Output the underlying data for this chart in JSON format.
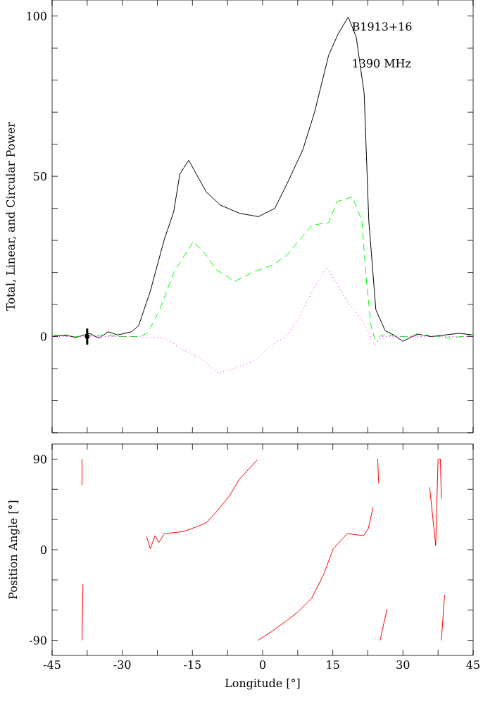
{
  "chart_data": [
    {
      "type": "line",
      "ylabel": "Total, Linear, and Circular Power",
      "annotations": [
        "B1913+16",
        "1390 MHz"
      ],
      "xlim": [
        -45,
        45
      ],
      "ylim": [
        -30,
        105
      ],
      "tick_labels": "y",
      "xticks": [
        {
          "value": -45,
          "label": null
        },
        {
          "value": -37.5,
          "label": null
        },
        {
          "value": -30,
          "label": null
        },
        {
          "value": -22.5,
          "label": null
        },
        {
          "value": -15,
          "label": null
        },
        {
          "value": -7.5,
          "label": null
        },
        {
          "value": 0,
          "label": null
        },
        {
          "value": 7.5,
          "label": null
        },
        {
          "value": 15,
          "label": null
        },
        {
          "value": 22.5,
          "label": null
        },
        {
          "value": 30,
          "label": null
        },
        {
          "value": 37.5,
          "label": null
        },
        {
          "value": 45,
          "label": null
        }
      ],
      "yticks": [
        {
          "value": -30,
          "label": null
        },
        {
          "value": -20,
          "label": null
        },
        {
          "value": -10,
          "label": null
        },
        0,
        {
          "value": 10,
          "label": null
        },
        {
          "value": 20,
          "label": null
        },
        {
          "value": 30,
          "label": null
        },
        {
          "value": 40,
          "label": null
        },
        50,
        {
          "value": 60,
          "label": null
        },
        {
          "value": 70,
          "label": null
        },
        {
          "value": 80,
          "label": null
        },
        {
          "value": 90,
          "label": null
        },
        100
      ],
      "series": [
        {
          "color": "#000000",
          "line_style": "solid",
          "x": [
            -45,
            -42,
            -40,
            -37,
            -35,
            -33,
            -31,
            -28,
            -26.5,
            -24,
            -21,
            -19,
            -17.7,
            -15.8,
            -12,
            -9,
            -5,
            -0.9,
            2.6,
            5.1,
            8.6,
            11.1,
            14.1,
            16.1,
            18.3,
            20,
            21.7,
            22.7,
            24.2,
            26.2,
            28,
            30,
            33,
            36,
            39,
            42,
            45
          ],
          "values": [
            0,
            0.5,
            -0.3,
            1,
            -0.5,
            1.5,
            0.5,
            1.5,
            3.4,
            14.2,
            30.4,
            39,
            50.7,
            55,
            45,
            41,
            38.5,
            37.4,
            40,
            47.3,
            58.3,
            70,
            87.7,
            94.3,
            99.7,
            93.5,
            75.9,
            36,
            8.4,
            1.8,
            0.5,
            -1.5,
            0.8,
            0,
            0.5,
            1,
            0.5
          ]
        },
        {
          "color": "#00ff00",
          "line_style": "dashed",
          "x": [
            -45,
            -40,
            -35,
            -30,
            -26,
            -24.5,
            -22,
            -19,
            -14.8,
            -12,
            -10,
            -6,
            -2,
            2.1,
            5.1,
            10.6,
            14.1,
            15.9,
            19.2,
            21.2,
            22.2,
            23.2,
            24,
            25.5,
            30,
            35,
            40,
            45
          ],
          "values": [
            0.5,
            0,
            0.5,
            0,
            0,
            1.3,
            8.4,
            20,
            29.7,
            25.3,
            20.9,
            17.2,
            20.1,
            22.3,
            25.3,
            34.8,
            35.5,
            42.1,
            43.6,
            36.3,
            17.2,
            3.2,
            -1,
            0.5,
            0,
            0.5,
            -0.5,
            0.5
          ]
        },
        {
          "color": "#ff00ff",
          "line_style": "dotted",
          "x": [
            -45,
            -35,
            -27.3,
            -21,
            -17,
            -13,
            -9.5,
            -6.4,
            -2,
            2.1,
            5.1,
            7.6,
            10.6,
            13.6,
            15.6,
            18.2,
            21.2,
            24,
            25.5,
            35,
            45
          ],
          "values": [
            0,
            0,
            0,
            -0.5,
            -4.1,
            -7,
            -11.5,
            -10,
            -7.8,
            -2.6,
            0.3,
            5.4,
            14.2,
            21.6,
            17.2,
            10.6,
            5.4,
            -2.6,
            0,
            0,
            0
          ]
        },
        {
          "type": "scatter",
          "marker": "square",
          "color": "#000000",
          "x": [
            -37.5
          ],
          "values": [
            0
          ],
          "errors": [
            2.5
          ]
        }
      ]
    },
    {
      "type": "line",
      "xlabel": "Longitude [°]",
      "ylabel": "Position Angle [°]",
      "xlim": [
        -45,
        45
      ],
      "ylim": [
        -105,
        105
      ],
      "xticks": [
        -45,
        {
          "value": -37.5,
          "label": null
        },
        -30,
        {
          "value": -22.5,
          "label": null
        },
        -15,
        {
          "value": -7.5,
          "label": null
        },
        0,
        {
          "value": 7.5,
          "label": null
        },
        15,
        {
          "value": 22.5,
          "label": null
        },
        30,
        {
          "value": 37.5,
          "label": null
        },
        45
      ],
      "yticks": [
        -90,
        {
          "value": -60,
          "label": null
        },
        {
          "value": -30,
          "label": null
        },
        0,
        {
          "value": 30,
          "label": null
        },
        {
          "value": 60,
          "label": null
        },
        90
      ],
      "series": [
        {
          "color": "#ff0000",
          "line_style": "solid",
          "x": [
            -38.6,
            -38.6
          ],
          "values": [
            90,
            64
          ]
        },
        {
          "color": "#ff0000",
          "line_style": "solid",
          "x": [
            -38.6,
            -38.4
          ],
          "values": [
            -90,
            -34
          ]
        },
        {
          "color": "#ff0000",
          "line_style": "solid",
          "x": [
            -24.8,
            -24,
            -23,
            -22.2,
            -21,
            -17,
            -14,
            -12,
            -10,
            -7,
            -5,
            -3,
            -1.2
          ],
          "values": [
            13,
            1,
            14,
            7,
            16,
            18,
            23,
            27,
            37,
            54,
            70,
            80,
            89
          ]
        },
        {
          "color": "#ff0000",
          "line_style": "solid",
          "x": [
            -1,
            2,
            5,
            7.5,
            10.5,
            13.1,
            15.1,
            18.1,
            21.6,
            22.6,
            23.6
          ],
          "values": [
            -90,
            -81,
            -71,
            -62,
            -48,
            -24,
            1,
            16,
            14,
            21,
            42
          ]
        },
        {
          "color": "#ff0000",
          "line_style": "solid",
          "x": [
            24.6,
            24.8
          ],
          "values": [
            90,
            66
          ]
        },
        {
          "color": "#ff0000",
          "line_style": "solid",
          "x": [
            25.1,
            26.6
          ],
          "values": [
            -90,
            -59
          ]
        },
        {
          "color": "#ff0000",
          "line_style": "solid",
          "x": [
            35.7,
            37,
            37.5,
            38,
            38.2
          ],
          "values": [
            62,
            4,
            90,
            90,
            51
          ]
        },
        {
          "color": "#ff0000",
          "line_style": "solid",
          "x": [
            38.2,
            38.9
          ],
          "values": [
            -90,
            -45
          ]
        }
      ]
    }
  ]
}
